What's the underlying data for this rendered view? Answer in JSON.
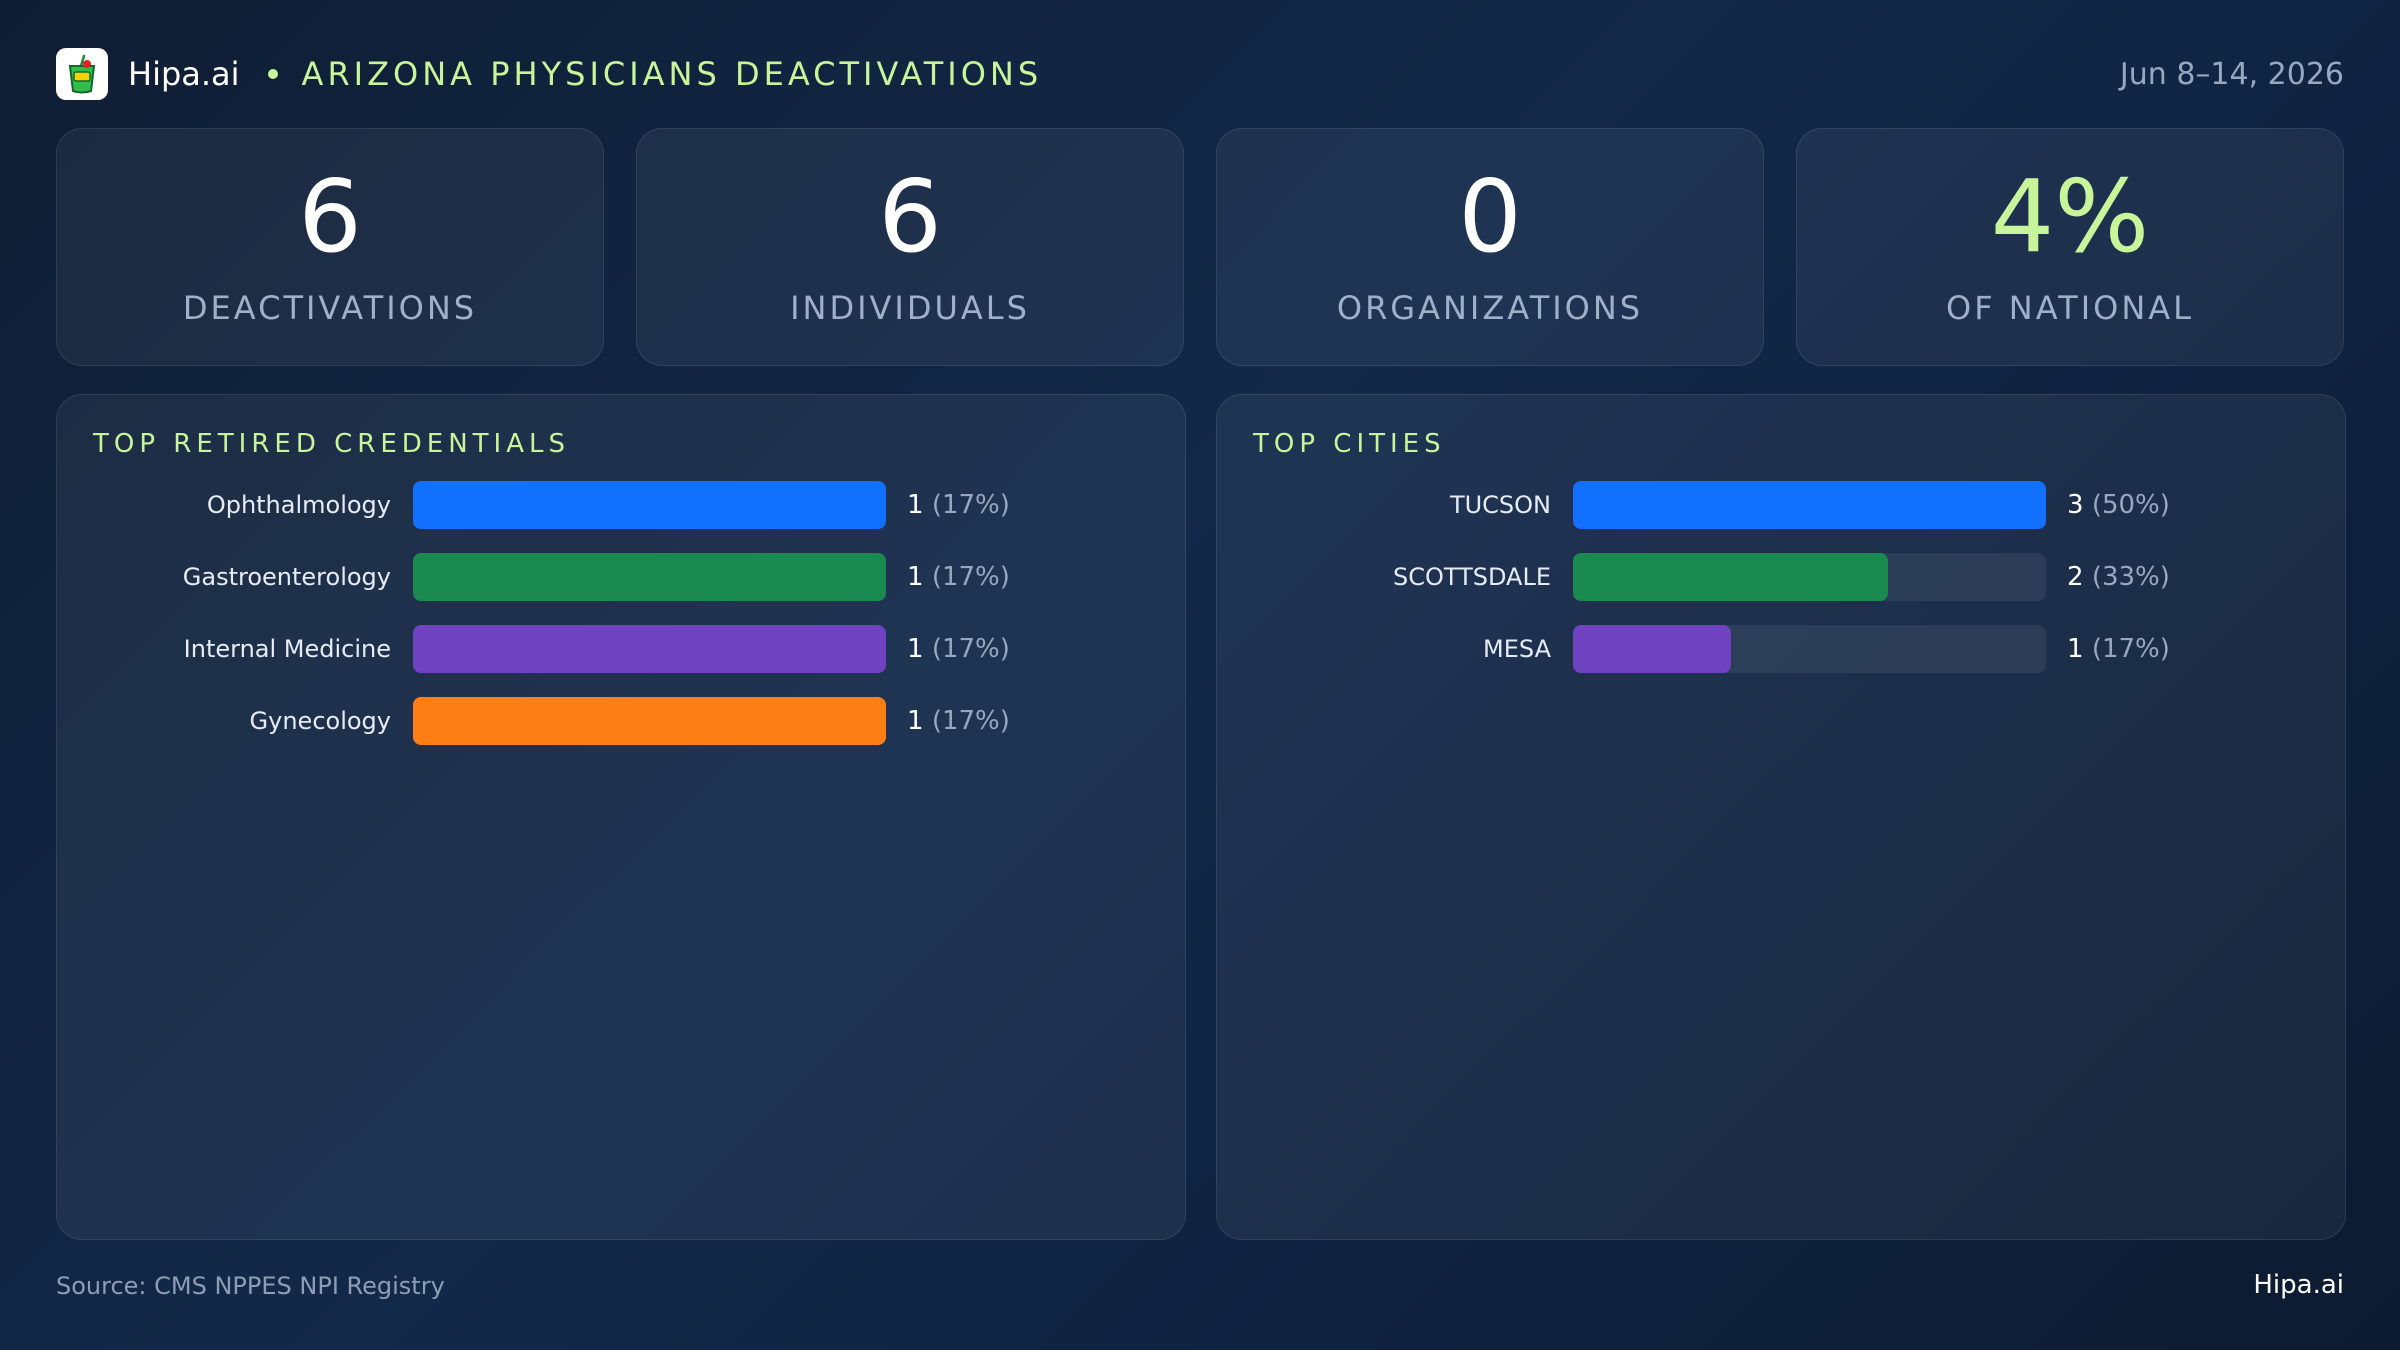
{
  "header": {
    "brand": "Hipa.ai",
    "title": "ARIZONA PHYSICIANS DEACTIVATIONS",
    "date": "Jun 8–14, 2026",
    "logo_icon": "cup-drink-icon"
  },
  "stats": [
    {
      "value": "6",
      "label": "DEACTIVATIONS"
    },
    {
      "value": "6",
      "label": "INDIVIDUALS"
    },
    {
      "value": "0",
      "label": "ORGANIZATIONS"
    },
    {
      "value": "4%",
      "label": "OF NATIONAL"
    }
  ],
  "chart_data": [
    {
      "type": "bar",
      "orientation": "horizontal",
      "title": "TOP RETIRED CREDENTIALS",
      "categories": [
        "Ophthalmology",
        "Gastroenterology",
        "Internal Medicine",
        "Gynecology"
      ],
      "values": [
        1,
        1,
        1,
        1
      ],
      "percent_labels": [
        "(17%)",
        "(17%)",
        "(17%)",
        "(17%)"
      ],
      "colors": [
        "#1170ff",
        "#1a8a50",
        "#6f42c1",
        "#fd7e14"
      ],
      "xlim": [
        0,
        1
      ]
    },
    {
      "type": "bar",
      "orientation": "horizontal",
      "title": "TOP CITIES",
      "categories": [
        "TUCSON",
        "SCOTTSDALE",
        "MESA"
      ],
      "values": [
        3,
        2,
        1
      ],
      "percent_labels": [
        "(50%)",
        "(33%)",
        "(17%)"
      ],
      "colors": [
        "#1170ff",
        "#1a8a50",
        "#6f42c1"
      ],
      "xlim": [
        0,
        3
      ]
    }
  ],
  "footer": {
    "source": "Source: CMS NPPES NPI Registry",
    "brand": "Hipa.ai"
  }
}
